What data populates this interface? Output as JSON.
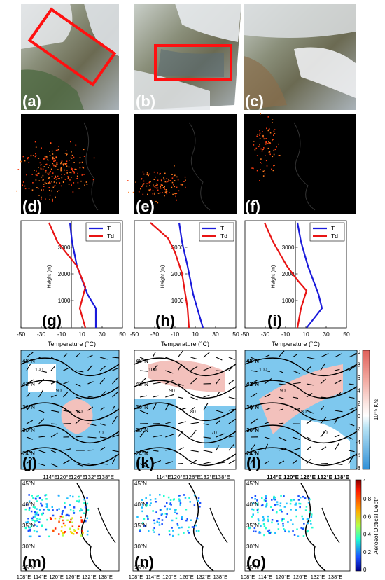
{
  "panel_letters": [
    "(a)",
    "(b)",
    "(c)",
    "(d)",
    "(e)",
    "(f)",
    "(g)",
    "(h)",
    "(i)",
    "(j)",
    "(k)",
    "(l)",
    "(m)",
    "(n)",
    "(o)"
  ],
  "sounding": {
    "xlabel": "Temperature (°C)",
    "ylabel": "Height (m)",
    "x_ticks": [
      "-50",
      "-30",
      "-10",
      "10",
      "30",
      "50"
    ],
    "y_ticks": [
      "3000",
      "2000",
      "1000"
    ],
    "legend": [
      "T",
      "Td"
    ],
    "colors": {
      "T": "#1a1adb",
      "Td": "#e81414"
    }
  },
  "vorticity": {
    "lat_ticks": [
      "48°N",
      "42°N",
      "36°N",
      "30°N",
      "24°N"
    ],
    "lon_ticks": [
      "114°E",
      "120°E",
      "126°E",
      "132°E",
      "138°E"
    ],
    "colorbar_ticks": [
      "10",
      "8",
      "6",
      "4",
      "2",
      "0",
      "-2",
      "-4",
      "-6",
      "-8"
    ],
    "colorbar_unit": "10⁻⁵ K/s",
    "contour_labels": [
      "100",
      "90",
      "80",
      "70",
      "60",
      "50"
    ]
  },
  "aod": {
    "lat_ticks": [
      "45°N",
      "40°N",
      "35°N",
      "30°N",
      "25°N"
    ],
    "lon_ticks": [
      "108°E",
      "114°E",
      "120°E",
      "126°E",
      "132°E",
      "138°E"
    ],
    "colorbar_ticks": [
      "1",
      "0.8",
      "0.6",
      "0.4",
      "0.2",
      "0"
    ],
    "colorbar_label": "Aerosol Optical Depth"
  }
}
